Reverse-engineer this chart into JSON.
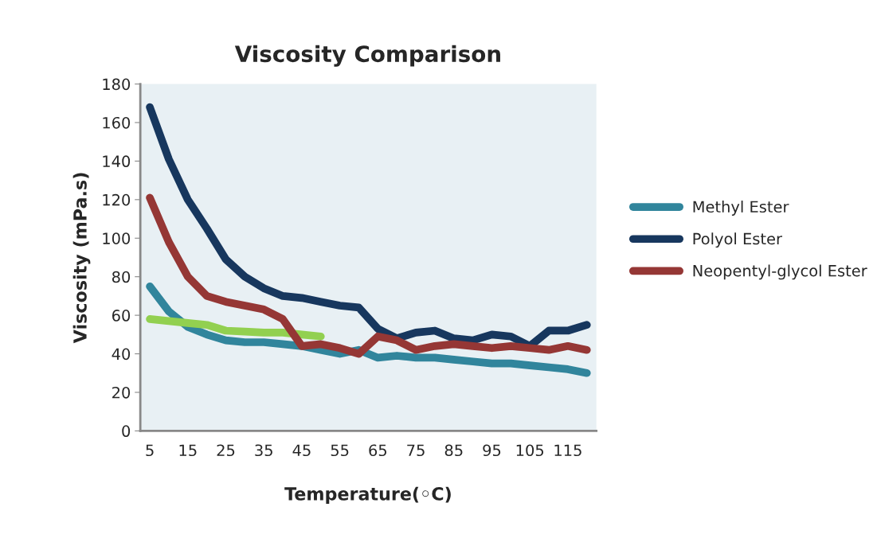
{
  "chart_data": {
    "type": "line",
    "title": "Viscosity Comparison",
    "xlabel": "Temperature(◦C)",
    "ylabel": "Viscosity (mPa.s)",
    "categories": [
      "5",
      null,
      "15",
      null,
      "25",
      null,
      "35",
      null,
      "45",
      null,
      "55",
      null,
      "65",
      null,
      "75",
      null,
      "85",
      null,
      "95",
      null,
      "105",
      null,
      "115",
      null
    ],
    "ylim": [
      0,
      180
    ],
    "yticks": [
      0,
      20,
      40,
      60,
      80,
      100,
      120,
      140,
      160,
      180
    ],
    "grid": false,
    "legend": "right",
    "line_style": "solid",
    "marker": "none",
    "series": [
      {
        "name": "Methyl Ester",
        "color": "#31859c",
        "values": [
          75,
          62,
          54,
          50,
          47,
          46,
          46,
          45,
          44,
          42,
          40,
          42,
          38,
          39,
          38,
          38,
          37,
          36,
          35,
          35,
          34,
          33,
          32,
          30
        ]
      },
      {
        "name": "Polyol Ester",
        "color": "#17375e",
        "values": [
          168,
          141,
          120,
          105,
          89,
          80,
          74,
          70,
          69,
          67,
          65,
          64,
          53,
          48,
          51,
          52,
          48,
          47,
          50,
          49,
          44,
          52,
          52,
          55
        ]
      },
      {
        "color": "#92d050",
        "values": [
          58,
          57,
          56,
          55,
          52,
          51.5,
          51,
          51,
          50,
          49,
          null,
          null,
          null,
          null,
          null,
          null,
          null,
          null,
          null,
          null,
          null,
          null,
          null,
          null
        ]
      },
      {
        "name": "Neopentyl-glycol Ester",
        "color": "#953735",
        "values": [
          121,
          98,
          80,
          70,
          67,
          65,
          63,
          58,
          44,
          45,
          43,
          40,
          49,
          47,
          42,
          44,
          45,
          44,
          43,
          44,
          43,
          42,
          44,
          42
        ]
      }
    ]
  }
}
